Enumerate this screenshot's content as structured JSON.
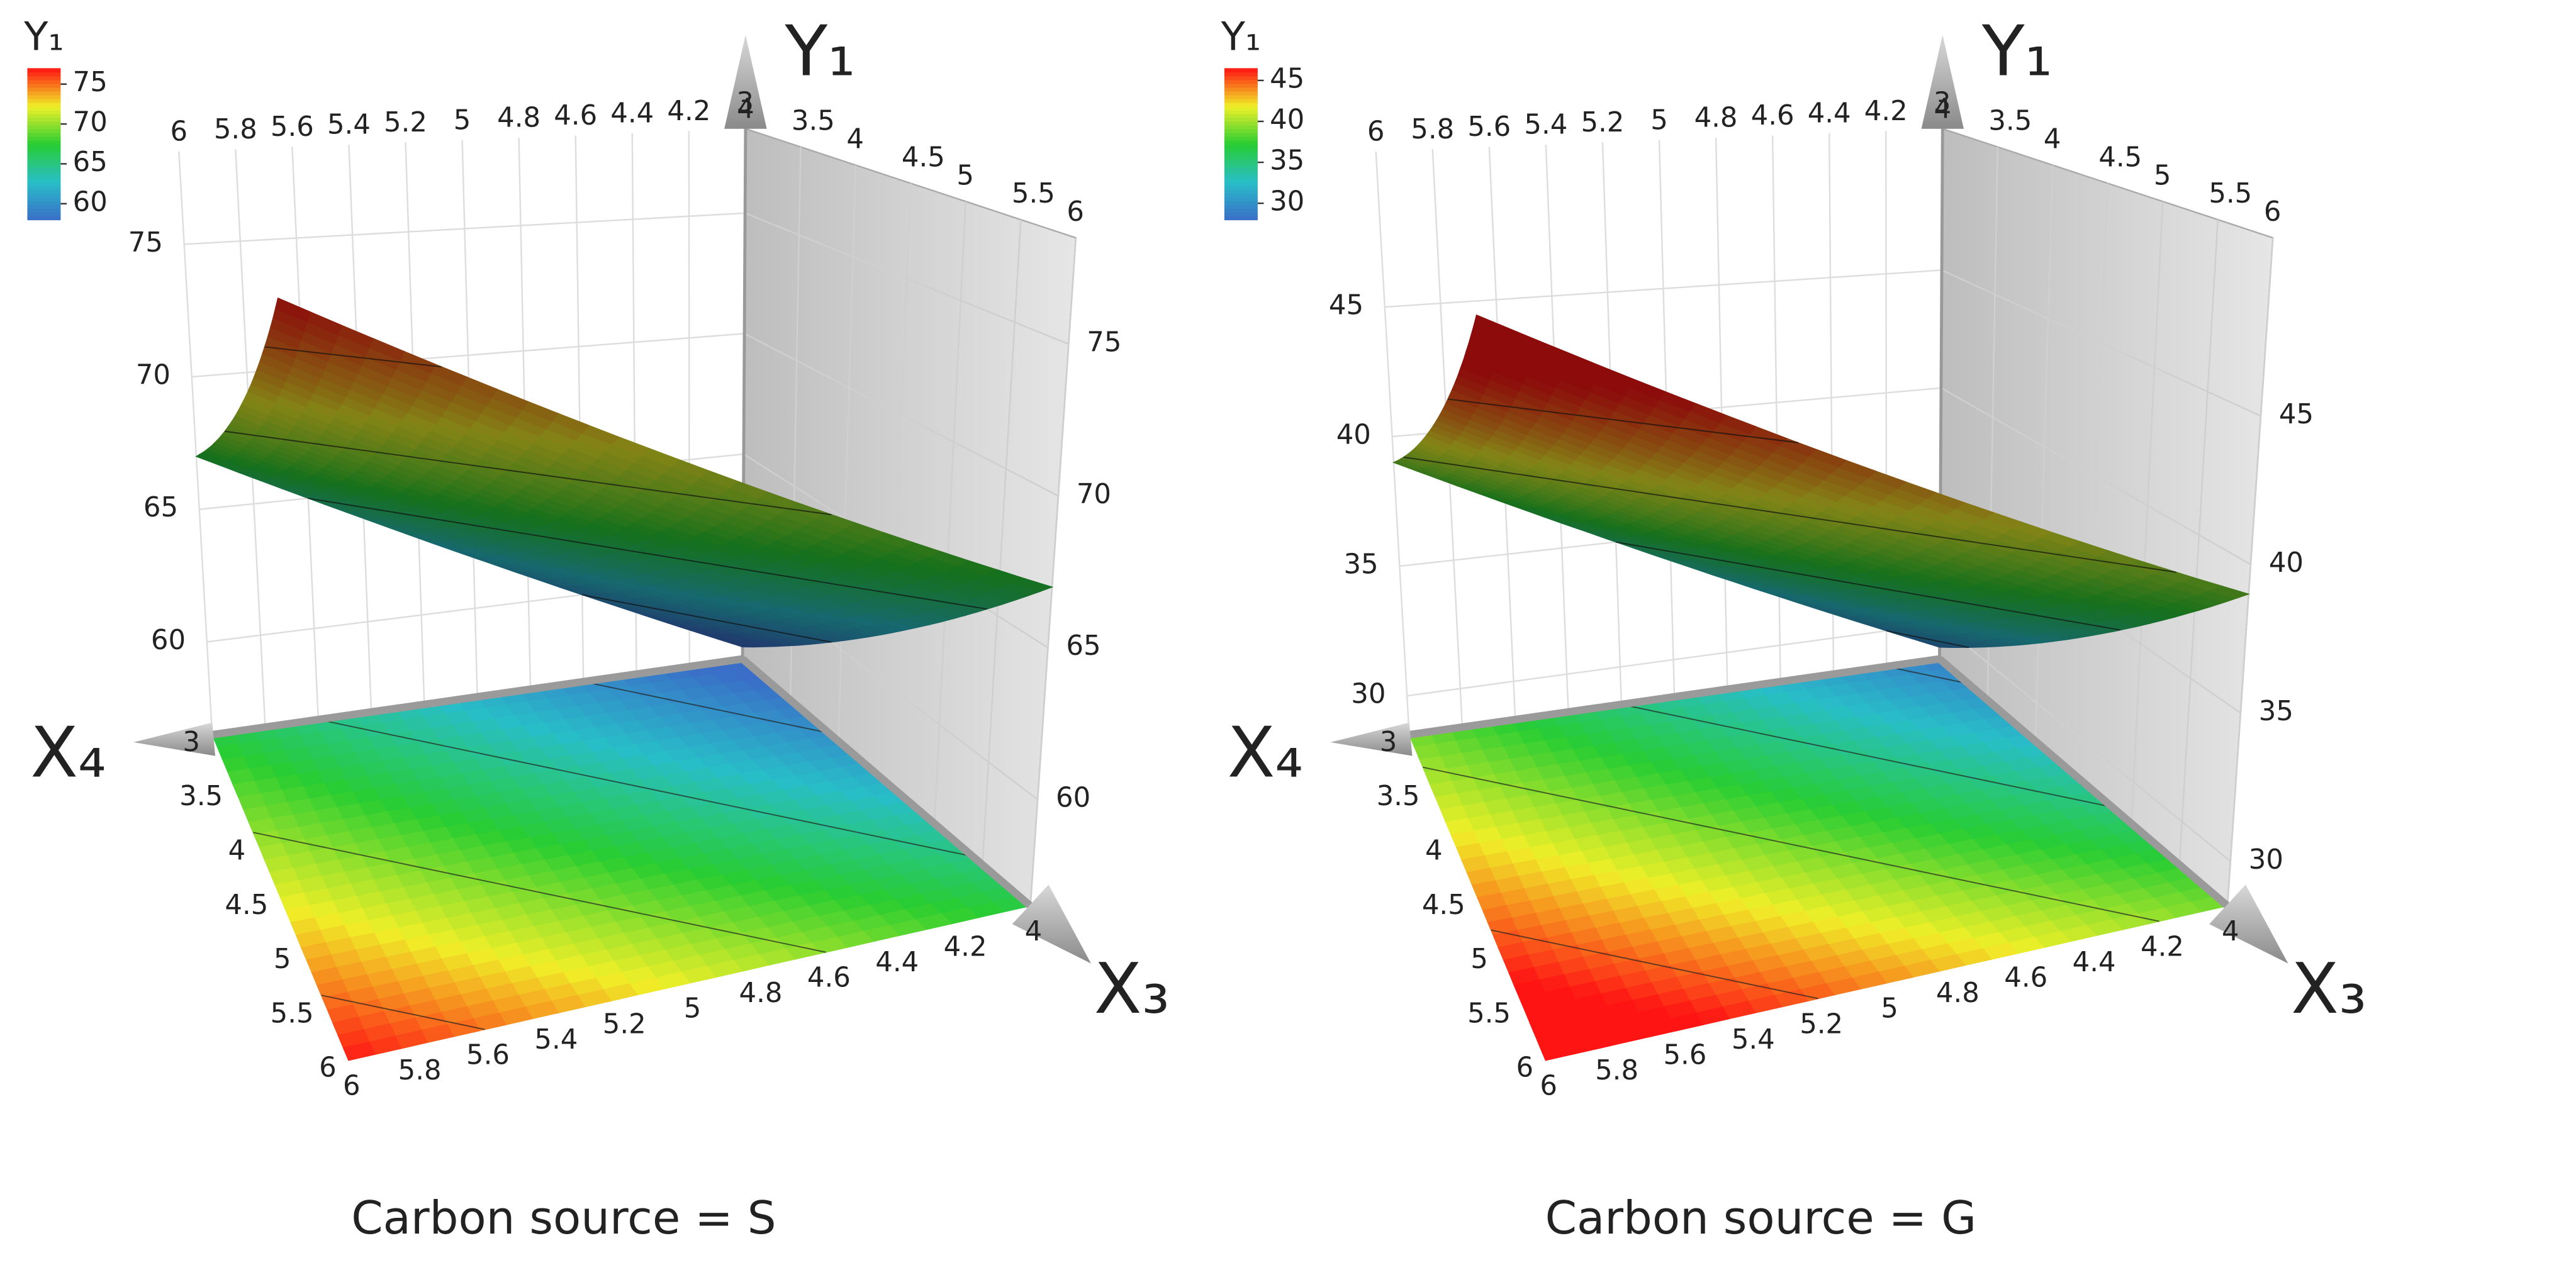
{
  "chart_data": [
    {
      "type": "surface3d",
      "caption": "Carbon source = S",
      "xlabel": "X₃",
      "ylabel": "X₄",
      "zlabel": "Y₁",
      "x": [
        4,
        6
      ],
      "y": [
        3,
        6
      ],
      "z": [
        [
          57,
          67
        ],
        [
          67,
          77
        ]
      ],
      "xlim": [
        4,
        6
      ],
      "ylim": [
        3,
        6
      ],
      "zlim": [
        56.5,
        78.5
      ],
      "xticks": [
        4,
        4.2,
        4.4,
        4.6,
        4.8,
        5,
        5.2,
        5.4,
        5.6,
        5.8,
        6
      ],
      "yticks": [
        3,
        3.5,
        4,
        4.5,
        5,
        5.5,
        6
      ],
      "zticks": [
        60,
        65,
        70,
        75
      ],
      "colorbar": {
        "title": "Y₁",
        "clim": [
          58,
          77
        ],
        "ticks": [
          60,
          65,
          70,
          75
        ]
      }
    },
    {
      "type": "surface3d",
      "caption": "Carbon source = G",
      "xlabel": "X₃",
      "ylabel": "X₄",
      "zlabel": "Y₁",
      "x": [
        4,
        6
      ],
      "y": [
        3,
        6
      ],
      "z": [
        [
          29,
          39
        ],
        [
          39,
          49
        ]
      ],
      "xlim": [
        4,
        6
      ],
      "ylim": [
        3,
        6
      ],
      "zlim": [
        28.5,
        51
      ],
      "xticks": [
        4,
        4.2,
        4.4,
        4.6,
        4.8,
        5,
        5.2,
        5.4,
        5.6,
        5.8,
        6
      ],
      "yticks": [
        3,
        3.5,
        4,
        4.5,
        5,
        5.5,
        6
      ],
      "zticks": [
        30,
        35,
        40,
        45
      ],
      "colorbar": {
        "title": "Y₁",
        "clim": [
          28,
          46.5
        ],
        "ticks": [
          30,
          35,
          40,
          45
        ]
      }
    }
  ]
}
